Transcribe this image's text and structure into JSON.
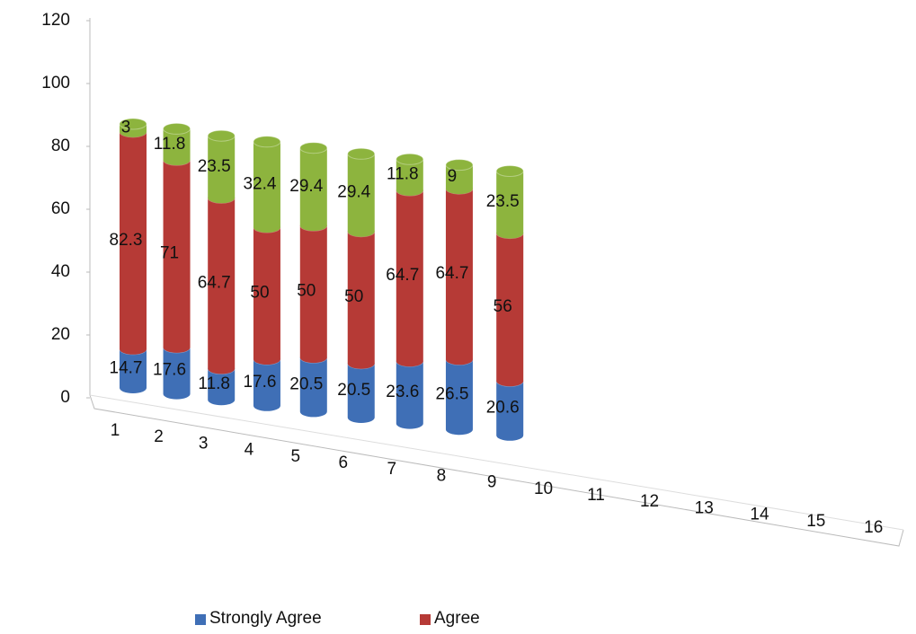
{
  "chart_data": {
    "type": "bar",
    "categories": [
      "1",
      "2",
      "3",
      "4",
      "5",
      "6",
      "7",
      "8",
      "9",
      "10",
      "11",
      "12",
      "13",
      "14",
      "15",
      "16"
    ],
    "series": [
      {
        "name": "Strongly Agree",
        "color": "#3f6fb6",
        "values": [
          14.7,
          17.6,
          11.8,
          17.6,
          20.5,
          20.5,
          23.6,
          26.5,
          20.6,
          null,
          null,
          null,
          null,
          null,
          null,
          null
        ]
      },
      {
        "name": "Agree",
        "color": "#b63a36",
        "values": [
          82.3,
          71,
          64.7,
          50,
          50,
          50,
          64.7,
          64.7,
          56,
          null,
          null,
          null,
          null,
          null,
          null,
          null
        ]
      },
      {
        "color": "#8db43e",
        "values": [
          3,
          11.8,
          23.5,
          32.4,
          29.4,
          29.4,
          11.8,
          9,
          23.5,
          null,
          null,
          null,
          null,
          null,
          null,
          null
        ]
      }
    ],
    "ylim": [
      0,
      120
    ],
    "yticks": [
      0,
      20,
      40,
      60,
      80,
      100,
      120
    ]
  }
}
